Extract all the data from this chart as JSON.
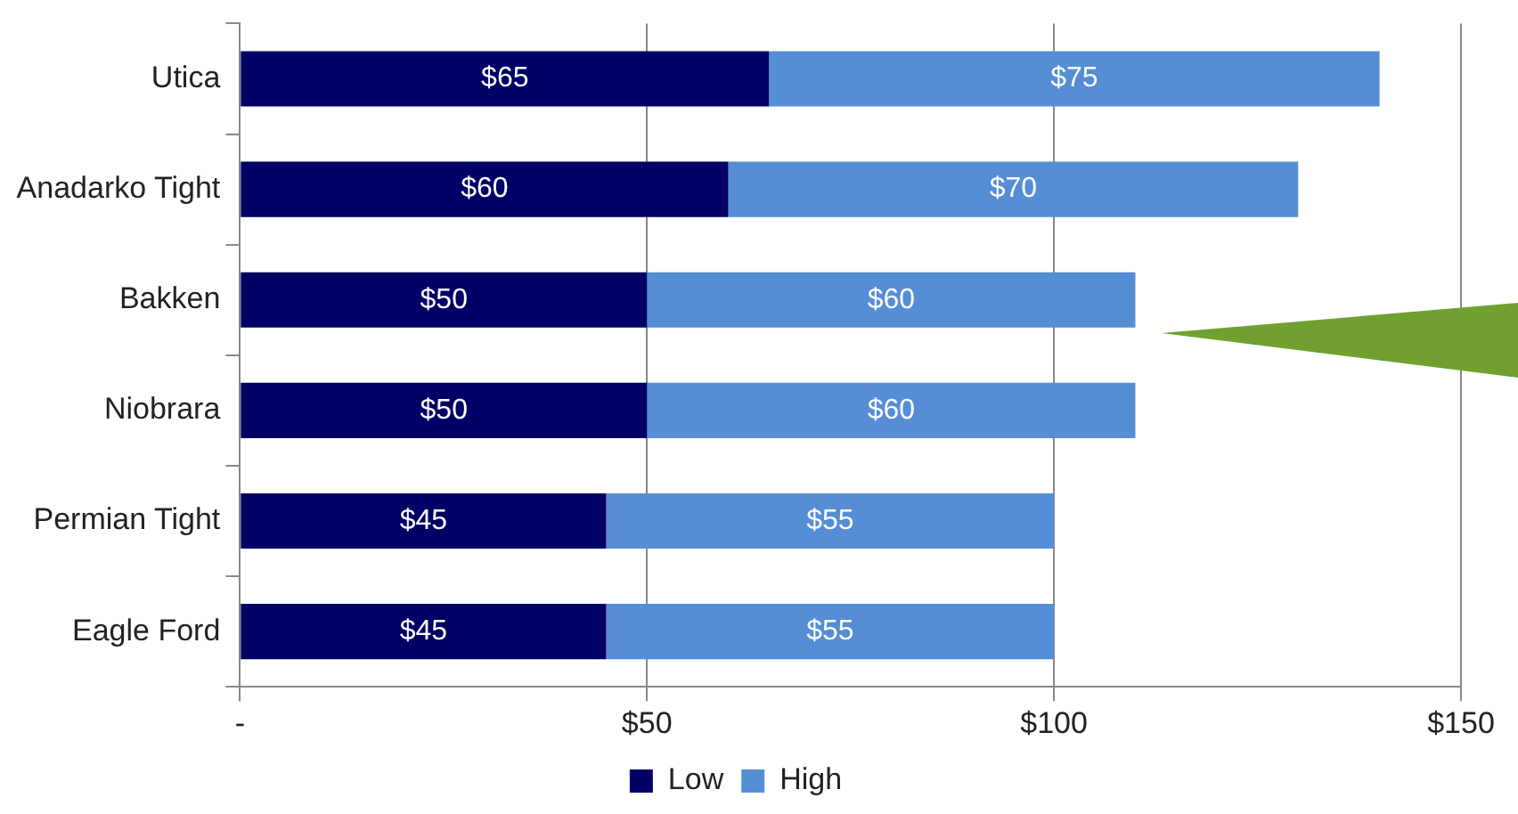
{
  "chart_data": {
    "type": "bar",
    "orientation": "horizontal",
    "stacked": true,
    "categories": [
      "Utica",
      "Anadarko Tight",
      "Bakken",
      "Niobrara",
      "Permian Tight",
      "Eagle Ford"
    ],
    "series": [
      {
        "name": "Low",
        "color": "#000066",
        "values": [
          65,
          60,
          50,
          50,
          45,
          45
        ],
        "value_labels": [
          "$65",
          "$60",
          "$50",
          "$50",
          "$45",
          "$45"
        ]
      },
      {
        "name": "High",
        "color": "#558ed5",
        "values": [
          75,
          70,
          60,
          60,
          55,
          55
        ],
        "value_labels": [
          "$75",
          "$70",
          "$60",
          "$60",
          "$55",
          "$55"
        ]
      }
    ],
    "xlim": [
      0,
      150
    ],
    "xticks": [
      {
        "value": 0,
        "label": "-"
      },
      {
        "value": 50,
        "label": "$50"
      },
      {
        "value": 100,
        "label": "$100"
      },
      {
        "value": 150,
        "label": "$150"
      }
    ],
    "grid": "x",
    "legend": "bottom"
  }
}
